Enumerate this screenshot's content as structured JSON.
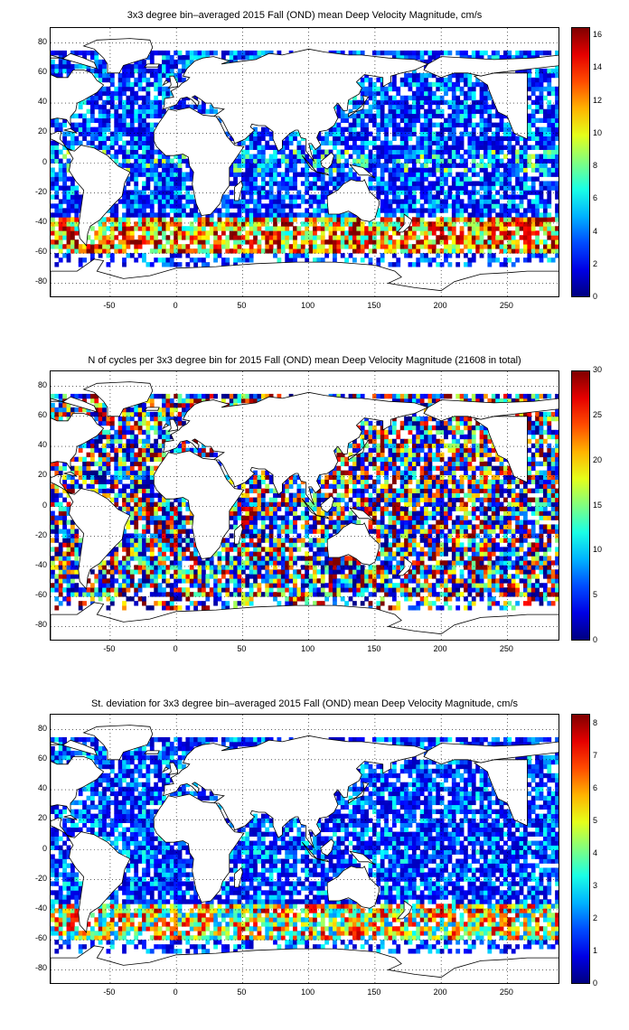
{
  "figure": {
    "panels": [
      {
        "id": "mean",
        "title": "3x3 degree bin–averaged 2015 Fall (OND) mean Deep Velocity Magnitude, cm/s",
        "colorbar_ticks": [
          "0",
          "2",
          "4",
          "6",
          "8",
          "10",
          "12",
          "14",
          "16"
        ],
        "colorbar_max": 16.5
      },
      {
        "id": "count",
        "title": "N of cycles per 3x3 degree bin for 2015 Fall (OND) mean Deep Velocity Magnitude (21608 in total)",
        "colorbar_ticks": [
          "0",
          "5",
          "10",
          "15",
          "20",
          "25",
          "30"
        ],
        "colorbar_max": 30
      },
      {
        "id": "std",
        "title": "St. deviation for 3x3 degree bin–averaged 2015 Fall (OND) mean Deep Velocity Magnitude, cm/s",
        "colorbar_ticks": [
          "0",
          "1",
          "2",
          "3",
          "4",
          "5",
          "6",
          "7",
          "8"
        ],
        "colorbar_max": 8.3
      }
    ],
    "x_ticks": [
      "-50",
      "0",
      "50",
      "100",
      "150",
      "200",
      "250"
    ],
    "y_ticks": [
      "80",
      "60",
      "40",
      "20",
      "0",
      "-20",
      "-40",
      "-60",
      "-80"
    ],
    "colormap": "jet"
  },
  "chart_data": [
    {
      "type": "heatmap",
      "title": "3x3 degree bin–averaged 2015 Fall (OND) mean Deep Velocity Magnitude, cm/s",
      "xlim": [
        -95,
        290
      ],
      "ylim": [
        -90,
        90
      ],
      "colorbar_range": [
        0,
        16.5
      ],
      "bin_size_deg": 3,
      "grid": true
    },
    {
      "type": "heatmap",
      "title": "N of cycles per 3x3 degree bin for 2015 Fall (OND) mean Deep Velocity Magnitude (21608 in total)",
      "xlim": [
        -95,
        290
      ],
      "ylim": [
        -90,
        90
      ],
      "colorbar_range": [
        0,
        30
      ],
      "bin_size_deg": 3,
      "grid": true
    },
    {
      "type": "heatmap",
      "title": "St. deviation for 3x3 degree bin–averaged 2015 Fall (OND) mean Deep Velocity Magnitude, cm/s",
      "xlim": [
        -95,
        290
      ],
      "ylim": [
        -90,
        90
      ],
      "colorbar_range": [
        0,
        8.3
      ],
      "bin_size_deg": 3,
      "grid": true
    }
  ]
}
